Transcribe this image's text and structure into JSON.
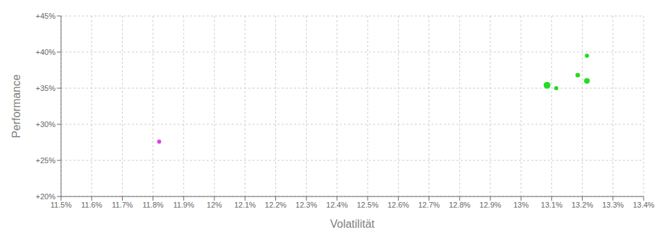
{
  "chart_data": {
    "type": "scatter",
    "xlabel": "Volatilität",
    "ylabel": "Performance",
    "xlim": [
      0.115,
      0.134
    ],
    "ylim": [
      0.2,
      0.45
    ],
    "xticks": [
      {
        "value": 0.115,
        "label": "11.5%"
      },
      {
        "value": 0.116,
        "label": "11.6%"
      },
      {
        "value": 0.117,
        "label": "11.7%"
      },
      {
        "value": 0.118,
        "label": "11.8%"
      },
      {
        "value": 0.119,
        "label": "11.9%"
      },
      {
        "value": 0.12,
        "label": "12%"
      },
      {
        "value": 0.121,
        "label": "12.1%"
      },
      {
        "value": 0.122,
        "label": "12.2%"
      },
      {
        "value": 0.123,
        "label": "12.3%"
      },
      {
        "value": 0.124,
        "label": "12.4%"
      },
      {
        "value": 0.125,
        "label": "12.5%"
      },
      {
        "value": 0.126,
        "label": "12.6%"
      },
      {
        "value": 0.127,
        "label": "12.7%"
      },
      {
        "value": 0.128,
        "label": "12.8%"
      },
      {
        "value": 0.129,
        "label": "12.9%"
      },
      {
        "value": 0.13,
        "label": "13%"
      },
      {
        "value": 0.131,
        "label": "13.1%"
      },
      {
        "value": 0.132,
        "label": "13.2%"
      },
      {
        "value": 0.133,
        "label": "13.3%"
      },
      {
        "value": 0.134,
        "label": "13.4%"
      }
    ],
    "yticks": [
      {
        "value": 0.2,
        "label": "+20%"
      },
      {
        "value": 0.25,
        "label": "+25%"
      },
      {
        "value": 0.3,
        "label": "+30%"
      },
      {
        "value": 0.35,
        "label": "+35%"
      },
      {
        "value": 0.4,
        "label": "+40%"
      },
      {
        "value": 0.45,
        "label": "+45%"
      }
    ],
    "x": [
      0.1182,
      0.13085,
      0.13115,
      0.13185,
      0.13215,
      0.13215
    ],
    "values": [
      0.276,
      0.354,
      0.35,
      0.368,
      0.36,
      0.395
    ],
    "colors": [
      "#dd44dd",
      "#22dd22",
      "#22dd22",
      "#22dd22",
      "#22dd22",
      "#22dd22"
    ],
    "sizes": [
      18,
      50,
      18,
      22,
      35,
      18
    ],
    "grid": true
  }
}
